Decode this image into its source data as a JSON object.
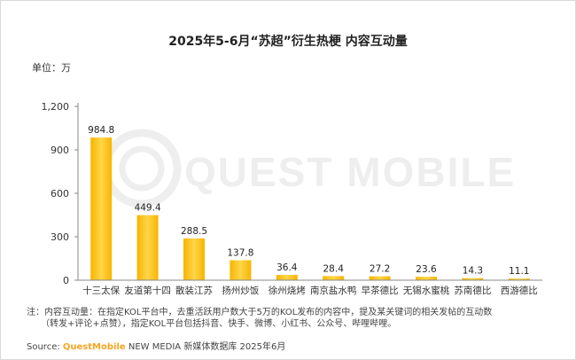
{
  "title": "2025年5-6月“苏超”衍生热梗 内容互动量",
  "unit_label": "单位：万",
  "watermark": "QUEST MOBILE",
  "note_line1": "注：内容互动量：在指定KOL平台中，去重活跃用户数大于5万的KOL发布的内容中，提及某关键词的相关发帖的互动数",
  "note_line2": "（转发+评论+点赞），指定KOL平台包括抖音、快手、微博、小红书、公众号、哔哩哔哩。",
  "source_prefix": "Source: ",
  "source_brand": "QuestMobile",
  "source_rest": " NEW MEDIA 新媒体数据库 2025年6月",
  "colors": {
    "bar": "#f7b500",
    "bar_light": "#ffd54a",
    "axis": "#888888",
    "grid": "#e6e6e6",
    "brand": "#f5a623"
  },
  "chart_data": {
    "type": "bar",
    "categories": [
      "十三太保",
      "友道第十四",
      "散装江苏",
      "扬州炒饭",
      "徐州烧烤",
      "南京盐水鸭",
      "早茶德比",
      "无锡水蜜桃",
      "苏南德比",
      "西游德比"
    ],
    "values": [
      984.8,
      449.4,
      288.5,
      137.8,
      36.4,
      28.4,
      27.2,
      23.6,
      14.3,
      11.1
    ],
    "data_labels": [
      "984.8",
      "449.4",
      "288.5",
      "137.8",
      "36.4",
      "28.4",
      "27.2",
      "23.6",
      "14.3",
      "11.1"
    ],
    "yticks": [
      0,
      300,
      600,
      900,
      1200
    ],
    "ytick_labels": [
      "0",
      "300",
      "600",
      "900",
      "1,200"
    ],
    "ylim": [
      0,
      1200
    ],
    "ylabel": "万",
    "grid": false,
    "legend": "none"
  }
}
